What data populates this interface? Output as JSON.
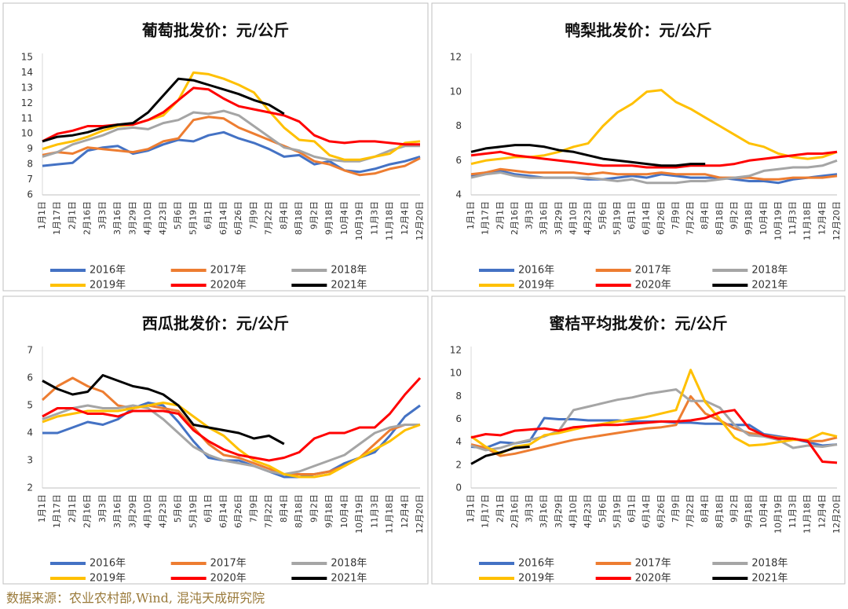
{
  "chart_data": [
    {
      "type": "line",
      "title": "葡萄批发价：元/公斤",
      "categories": [
        "1月1日",
        "1月17日",
        "2月1日",
        "2月16日",
        "3月3日",
        "3月16日",
        "3月29日",
        "4月10日",
        "4月23日",
        "5月6日",
        "5月19日",
        "6月1日",
        "6月14日",
        "6月26日",
        "7月9日",
        "7月22日",
        "8月4日",
        "8月18日",
        "9月2日",
        "9月18日",
        "10月4日",
        "10月19日",
        "11月3日",
        "11月18日",
        "12月4日",
        "12月20日"
      ],
      "ylim": [
        6,
        15
      ],
      "yticks": [
        6,
        7,
        8,
        9,
        10,
        11,
        12,
        13,
        14,
        15
      ],
      "grid": false,
      "series": [
        {
          "name": "2016年",
          "color": "#4472c4",
          "values": [
            7.9,
            8.0,
            8.1,
            8.9,
            9.1,
            9.2,
            8.7,
            8.9,
            9.3,
            9.6,
            9.5,
            9.9,
            10.1,
            9.7,
            9.4,
            9.0,
            8.5,
            8.6,
            8.0,
            8.2,
            7.6,
            7.5,
            7.7,
            8.0,
            8.2,
            8.5
          ]
        },
        {
          "name": "2017年",
          "color": "#ed7d31",
          "values": [
            8.6,
            8.8,
            8.7,
            9.1,
            9.0,
            8.9,
            8.8,
            9.0,
            9.5,
            9.7,
            10.9,
            11.1,
            11.0,
            10.4,
            10.0,
            9.6,
            9.2,
            8.8,
            8.2,
            8.0,
            7.6,
            7.3,
            7.4,
            7.7,
            7.9,
            8.4
          ]
        },
        {
          "name": "2018年",
          "color": "#a5a5a5",
          "values": [
            8.5,
            8.8,
            9.3,
            9.6,
            9.9,
            10.3,
            10.4,
            10.3,
            10.7,
            10.9,
            11.4,
            11.3,
            11.5,
            11.2,
            10.5,
            9.8,
            9.1,
            8.9,
            8.5,
            8.3,
            8.2,
            8.2,
            8.5,
            8.9,
            9.2,
            9.2
          ]
        },
        {
          "name": "2019年",
          "color": "#ffc000",
          "values": [
            9.0,
            9.3,
            9.5,
            9.8,
            10.2,
            10.5,
            10.6,
            10.9,
            11.2,
            12.2,
            14.0,
            13.9,
            13.6,
            13.2,
            12.7,
            11.5,
            10.4,
            9.6,
            9.5,
            8.6,
            8.3,
            8.3,
            8.5,
            8.7,
            9.4,
            9.5
          ]
        },
        {
          "name": "2020年",
          "color": "#ff0000",
          "values": [
            9.5,
            10.0,
            10.2,
            10.5,
            10.5,
            10.6,
            10.6,
            10.9,
            11.4,
            12.2,
            13.0,
            12.9,
            12.3,
            11.8,
            11.6,
            11.4,
            11.2,
            10.8,
            9.9,
            9.5,
            9.4,
            9.5,
            9.5,
            9.4,
            9.3,
            9.3
          ]
        },
        {
          "name": "2021年",
          "color": "#000000",
          "values": [
            9.5,
            9.8,
            9.9,
            10.1,
            10.4,
            10.6,
            10.7,
            11.4,
            12.5,
            13.6,
            13.5,
            13.2,
            12.9,
            12.6,
            12.2,
            11.9,
            11.3,
            null,
            null,
            null,
            null,
            null,
            null,
            null,
            null,
            null
          ]
        }
      ]
    },
    {
      "type": "line",
      "title": "鸭梨批发价：元/公斤",
      "categories": [
        "1月1日",
        "1月17日",
        "2月1日",
        "2月16日",
        "3月3日",
        "3月16日",
        "3月29日",
        "4月10日",
        "4月23日",
        "5月6日",
        "5月19日",
        "6月1日",
        "6月14日",
        "6月26日",
        "7月9日",
        "7月22日",
        "8月4日",
        "8月18日",
        "9月2日",
        "9月18日",
        "10月4日",
        "10月19日",
        "11月3日",
        "11月18日",
        "12月4日",
        "12月20日"
      ],
      "ylim": [
        4,
        12
      ],
      "yticks": [
        4,
        6,
        8,
        10,
        12
      ],
      "grid": false,
      "series": [
        {
          "name": "2016年",
          "color": "#4472c4",
          "values": [
            5.1,
            5.3,
            5.4,
            5.2,
            5.1,
            5.0,
            5.0,
            5.0,
            4.9,
            4.9,
            5.0,
            5.1,
            5.0,
            5.2,
            5.1,
            5.0,
            5.0,
            5.0,
            4.9,
            4.8,
            4.8,
            4.7,
            4.9,
            5.0,
            5.1,
            5.2
          ]
        },
        {
          "name": "2017年",
          "color": "#ed7d31",
          "values": [
            5.2,
            5.3,
            5.5,
            5.4,
            5.3,
            5.3,
            5.3,
            5.3,
            5.2,
            5.3,
            5.2,
            5.2,
            5.2,
            5.3,
            5.2,
            5.2,
            5.2,
            5.0,
            5.0,
            5.0,
            4.9,
            4.9,
            5.0,
            5.0,
            5.0,
            5.1
          ]
        },
        {
          "name": "2018年",
          "color": "#a5a5a5",
          "values": [
            5.0,
            5.2,
            5.3,
            5.1,
            5.0,
            5.0,
            5.0,
            5.0,
            5.0,
            4.9,
            4.8,
            4.9,
            4.7,
            4.7,
            4.7,
            4.8,
            4.8,
            4.9,
            5.0,
            5.1,
            5.4,
            5.5,
            5.6,
            5.6,
            5.7,
            6.0
          ]
        },
        {
          "name": "2019年",
          "color": "#ffc000",
          "values": [
            5.8,
            6.0,
            6.1,
            6.2,
            6.2,
            6.3,
            6.5,
            6.8,
            7.0,
            8.0,
            8.8,
            9.3,
            10.0,
            10.1,
            9.4,
            9.0,
            8.5,
            8.0,
            7.5,
            7.0,
            6.8,
            6.4,
            6.2,
            6.1,
            6.2,
            6.5
          ]
        },
        {
          "name": "2020年",
          "color": "#ff0000",
          "values": [
            6.3,
            6.4,
            6.5,
            6.3,
            6.2,
            6.1,
            6.0,
            5.9,
            5.8,
            5.7,
            5.7,
            5.7,
            5.6,
            5.6,
            5.6,
            5.7,
            5.7,
            5.7,
            5.8,
            6.0,
            6.1,
            6.2,
            6.3,
            6.4,
            6.4,
            6.5
          ]
        },
        {
          "name": "2021年",
          "color": "#000000",
          "values": [
            6.5,
            6.7,
            6.8,
            6.9,
            6.9,
            6.8,
            6.6,
            6.5,
            6.3,
            6.1,
            6.0,
            5.9,
            5.8,
            5.7,
            5.7,
            5.8,
            5.8,
            null,
            null,
            null,
            null,
            null,
            null,
            null,
            null,
            null
          ]
        }
      ]
    },
    {
      "type": "line",
      "title": "西瓜批发价：元/公斤",
      "categories": [
        "1月1日",
        "1月17日",
        "2月1日",
        "2月16日",
        "3月3日",
        "3月16日",
        "3月29日",
        "4月10日",
        "4月23日",
        "5月6日",
        "5月19日",
        "6月1日",
        "6月14日",
        "6月26日",
        "7月9日",
        "7月22日",
        "8月4日",
        "8月18日",
        "9月2日",
        "9月18日",
        "10月4日",
        "10月19日",
        "11月3日",
        "11月18日",
        "12月4日",
        "12月20日"
      ],
      "ylim": [
        2,
        7
      ],
      "yticks": [
        2,
        3,
        4,
        5,
        6,
        7
      ],
      "grid": false,
      "series": [
        {
          "name": "2016年",
          "color": "#4472c4",
          "values": [
            4.0,
            4.0,
            4.2,
            4.4,
            4.3,
            4.5,
            4.9,
            5.1,
            5.0,
            4.4,
            3.7,
            3.1,
            3.0,
            3.0,
            2.8,
            2.6,
            2.4,
            2.4,
            2.5,
            2.6,
            2.9,
            3.1,
            3.3,
            3.9,
            4.6,
            5.0
          ]
        },
        {
          "name": "2017年",
          "color": "#ed7d31",
          "values": [
            5.2,
            5.7,
            6.0,
            5.7,
            5.5,
            5.0,
            4.9,
            5.0,
            4.9,
            4.8,
            4.2,
            3.6,
            3.2,
            3.1,
            2.9,
            2.7,
            2.5,
            2.5,
            2.5,
            2.6,
            2.8,
            3.1,
            3.6,
            4.1,
            4.3,
            4.3
          ]
        },
        {
          "name": "2018年",
          "color": "#a5a5a5",
          "values": [
            4.5,
            4.7,
            4.9,
            5.0,
            4.9,
            4.9,
            5.0,
            4.9,
            4.5,
            4.0,
            3.5,
            3.2,
            3.0,
            2.9,
            2.8,
            2.6,
            2.5,
            2.6,
            2.8,
            3.0,
            3.2,
            3.6,
            4.0,
            4.2,
            4.3,
            4.3
          ]
        },
        {
          "name": "2019年",
          "color": "#ffc000",
          "values": [
            4.4,
            4.6,
            4.7,
            4.8,
            4.8,
            4.8,
            4.9,
            5.0,
            5.1,
            5.0,
            4.6,
            4.2,
            3.9,
            3.4,
            3.0,
            2.8,
            2.5,
            2.4,
            2.4,
            2.5,
            2.8,
            3.1,
            3.4,
            3.7,
            4.1,
            4.3
          ]
        },
        {
          "name": "2020年",
          "color": "#ff0000",
          "values": [
            4.6,
            4.9,
            4.9,
            4.7,
            4.7,
            4.6,
            4.8,
            4.8,
            4.8,
            4.7,
            4.1,
            3.7,
            3.4,
            3.2,
            3.1,
            3.0,
            3.1,
            3.3,
            3.8,
            4.0,
            4.0,
            4.2,
            4.2,
            4.7,
            5.4,
            6.0
          ]
        },
        {
          "name": "2021年",
          "color": "#000000",
          "values": [
            5.9,
            5.6,
            5.4,
            5.5,
            6.1,
            5.9,
            5.7,
            5.6,
            5.4,
            5.0,
            4.3,
            4.2,
            4.1,
            4.0,
            3.8,
            3.9,
            3.6,
            null,
            null,
            null,
            null,
            null,
            null,
            null,
            null,
            null
          ]
        }
      ]
    },
    {
      "type": "line",
      "title": "蜜桔平均批发价：元/公斤",
      "categories": [
        "1月1日",
        "1月17日",
        "2月1日",
        "2月16日",
        "3月3日",
        "3月16日",
        "3月29日",
        "4月10日",
        "4月23日",
        "5月6日",
        "5月19日",
        "6月1日",
        "6月14日",
        "6月26日",
        "7月9日",
        "7月22日",
        "8月4日",
        "8月18日",
        "9月2日",
        "9月18日",
        "10月4日",
        "10月19日",
        "11月3日",
        "11月18日",
        "12月4日",
        "12月20日"
      ],
      "ylim": [
        0,
        12
      ],
      "yticks": [
        0,
        2,
        4,
        6,
        8,
        10,
        12
      ],
      "grid": false,
      "series": [
        {
          "name": "2016年",
          "color": "#4472c4",
          "values": [
            3.6,
            3.5,
            4.0,
            3.9,
            4.1,
            6.1,
            6.0,
            6.0,
            5.9,
            5.9,
            5.9,
            5.8,
            5.8,
            5.8,
            5.7,
            5.7,
            5.6,
            5.6,
            5.5,
            5.5,
            4.7,
            4.5,
            4.3,
            4.0,
            3.7,
            3.8
          ]
        },
        {
          "name": "2017年",
          "color": "#ed7d31",
          "values": [
            3.8,
            3.5,
            2.8,
            3.0,
            3.3,
            3.6,
            3.9,
            4.2,
            4.4,
            4.6,
            4.8,
            5.0,
            5.2,
            5.3,
            5.5,
            8.0,
            6.5,
            5.9,
            5.2,
            4.8,
            4.6,
            4.4,
            4.3,
            4.1,
            4.1,
            4.4
          ]
        },
        {
          "name": "2018年",
          "color": "#a5a5a5",
          "values": [
            3.7,
            3.3,
            3.5,
            3.9,
            4.2,
            4.5,
            5.0,
            6.8,
            7.1,
            7.4,
            7.7,
            7.9,
            8.2,
            8.4,
            8.6,
            7.6,
            7.6,
            7.0,
            5.5,
            4.6,
            4.5,
            4.2,
            3.5,
            3.7,
            3.6,
            3.8
          ]
        },
        {
          "name": "2019年",
          "color": "#ffc000",
          "values": [
            4.5,
            3.6,
            3.0,
            3.6,
            3.8,
            4.6,
            4.8,
            5.1,
            5.4,
            5.6,
            5.8,
            6.0,
            6.2,
            6.5,
            6.8,
            10.3,
            7.5,
            6.0,
            4.4,
            3.7,
            3.8,
            4.0,
            4.2,
            4.2,
            4.8,
            4.5
          ]
        },
        {
          "name": "2020年",
          "color": "#ff0000",
          "values": [
            4.4,
            4.7,
            4.6,
            5.0,
            5.1,
            5.2,
            5.0,
            5.3,
            5.4,
            5.5,
            5.5,
            5.6,
            5.7,
            5.8,
            5.8,
            5.9,
            6.1,
            6.6,
            6.8,
            5.2,
            4.6,
            4.3,
            4.3,
            4.1,
            2.3,
            2.2
          ]
        },
        {
          "name": "2021年",
          "color": "#000000",
          "values": [
            2.1,
            2.8,
            3.1,
            3.5,
            3.6,
            null,
            null,
            null,
            null,
            null,
            null,
            null,
            null,
            null,
            null,
            null,
            null,
            null,
            null,
            null,
            null,
            null,
            null,
            null,
            null,
            null
          ]
        }
      ]
    }
  ],
  "source": "数据来源：农业农村部,Wind, 混沌天成研究院"
}
